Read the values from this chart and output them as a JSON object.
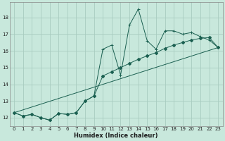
{
  "xlabel": "Humidex (Indice chaleur)",
  "bg_color": "#c8e8dc",
  "grid_color": "#a8ccc0",
  "line_color": "#1a5f50",
  "xlim": [
    -0.5,
    23.5
  ],
  "ylim": [
    11.5,
    18.9
  ],
  "xticks": [
    0,
    1,
    2,
    3,
    4,
    5,
    6,
    7,
    8,
    9,
    10,
    11,
    12,
    13,
    14,
    15,
    16,
    17,
    18,
    19,
    20,
    21,
    22,
    23
  ],
  "yticks": [
    12,
    13,
    14,
    15,
    16,
    17,
    18
  ],
  "series1_x": [
    0,
    1,
    2,
    3,
    4,
    5,
    6,
    7,
    8,
    9,
    10,
    11,
    12,
    13,
    14,
    15,
    16,
    17,
    18,
    19,
    20,
    21,
    22,
    23
  ],
  "series1_y": [
    12.3,
    12.1,
    12.2,
    12.0,
    11.85,
    12.25,
    12.2,
    12.3,
    13.0,
    13.3,
    16.1,
    16.35,
    14.55,
    17.55,
    18.5,
    16.6,
    16.1,
    17.2,
    17.2,
    17.0,
    17.1,
    16.85,
    16.65,
    16.2
  ],
  "series2_x": [
    0,
    1,
    2,
    3,
    4,
    5,
    6,
    7,
    8,
    9,
    10,
    11,
    12,
    13,
    14,
    15,
    16,
    17,
    18,
    19,
    20,
    21,
    22,
    23
  ],
  "series2_y": [
    12.3,
    12.1,
    12.2,
    12.0,
    11.85,
    12.25,
    12.2,
    12.3,
    13.0,
    13.3,
    14.5,
    14.75,
    15.0,
    15.25,
    15.5,
    15.7,
    15.9,
    16.15,
    16.35,
    16.5,
    16.65,
    16.75,
    16.8,
    16.2
  ],
  "series3_x": [
    0,
    23
  ],
  "series3_y": [
    12.3,
    16.2
  ]
}
